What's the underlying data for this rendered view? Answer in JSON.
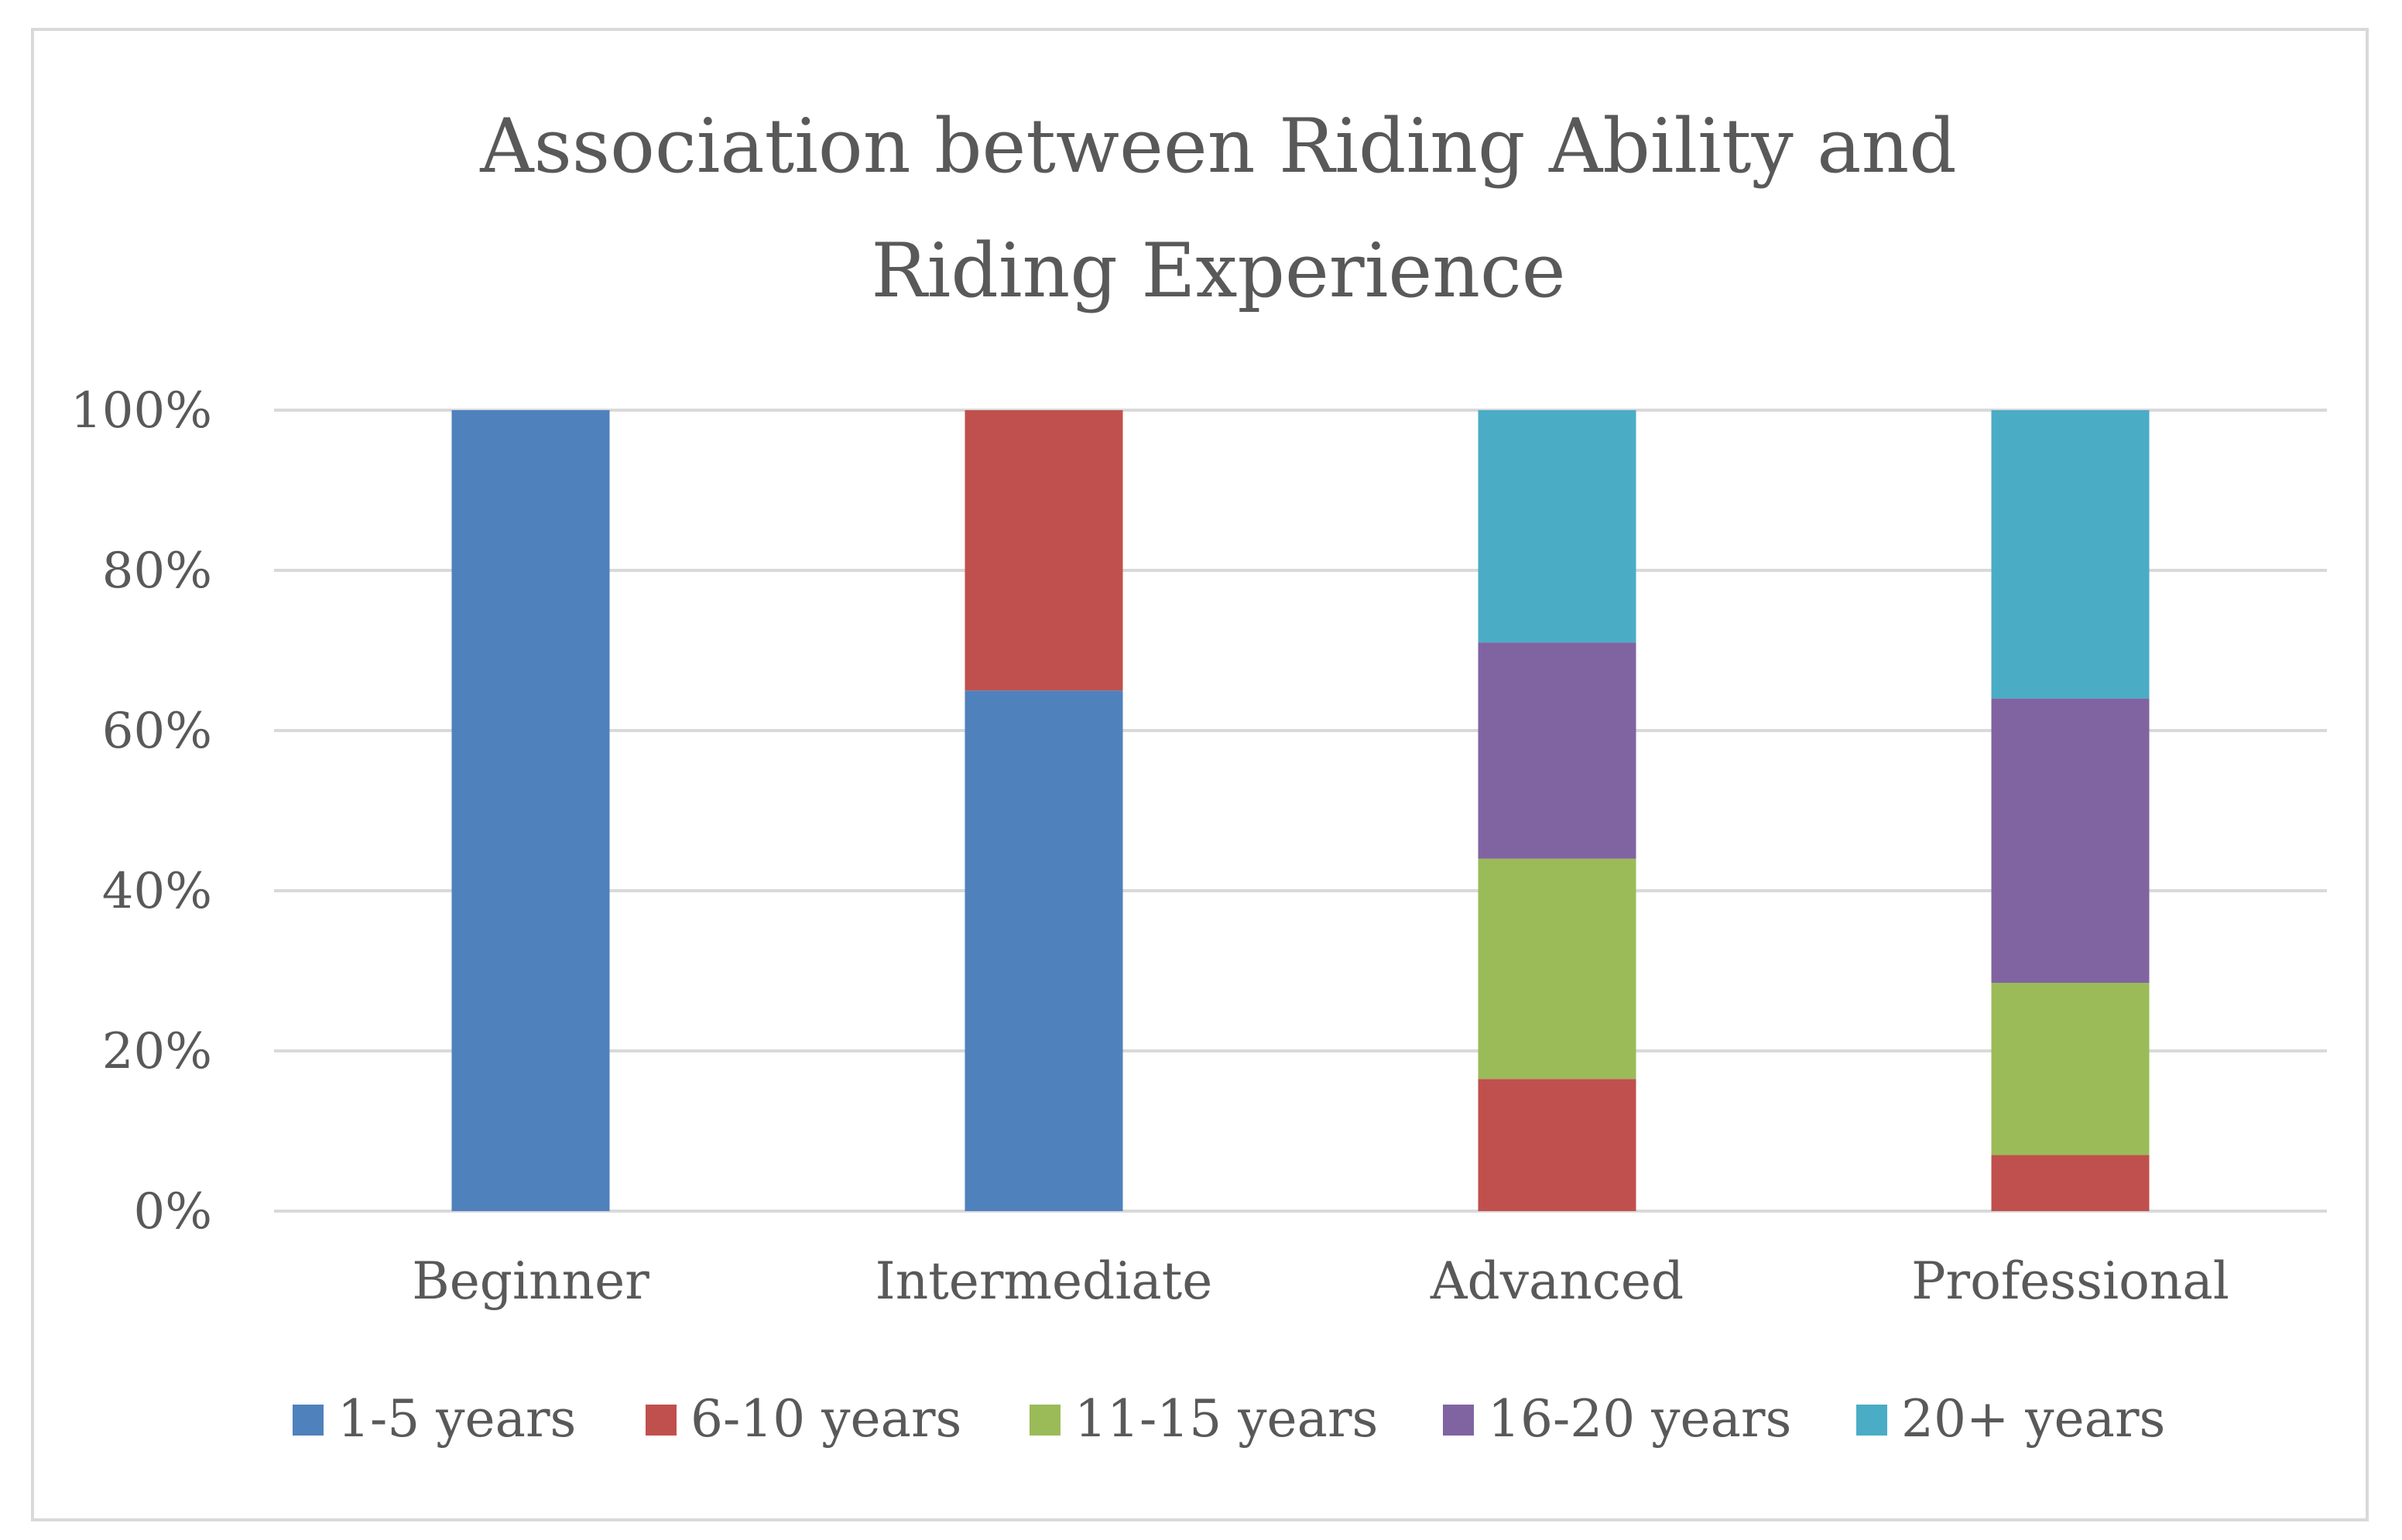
{
  "chart_data": {
    "type": "bar",
    "stacked": true,
    "percent_stacked": true,
    "title_lines": [
      "Association between Riding Ability and",
      "Riding Experience"
    ],
    "title": "Association between Riding Ability and Riding Experience",
    "xlabel": "",
    "ylabel": "",
    "ylim": [
      0,
      100
    ],
    "y_ticks": [
      0,
      20,
      40,
      60,
      80,
      100
    ],
    "y_tick_labels": [
      "0%",
      "20%",
      "40%",
      "60%",
      "80%",
      "100%"
    ],
    "grid": true,
    "legend_position": "bottom",
    "categories": [
      "Beginner",
      "Intermediate",
      "Advanced",
      "Professional"
    ],
    "series": [
      {
        "name": "1-5 years",
        "color": "#4f81bd",
        "values": [
          100,
          65,
          0,
          0
        ]
      },
      {
        "name": "6-10 years",
        "color": "#c0504d",
        "values": [
          0,
          35,
          16.5,
          7
        ]
      },
      {
        "name": "11-15 years",
        "color": "#9bbb59",
        "values": [
          0,
          0,
          27.5,
          21.5
        ]
      },
      {
        "name": "16-20 years",
        "color": "#8064a2",
        "values": [
          0,
          0,
          27,
          35.5
        ]
      },
      {
        "name": "20+ years",
        "color": "#4bacc6",
        "values": [
          0,
          0,
          29,
          36
        ]
      }
    ]
  }
}
